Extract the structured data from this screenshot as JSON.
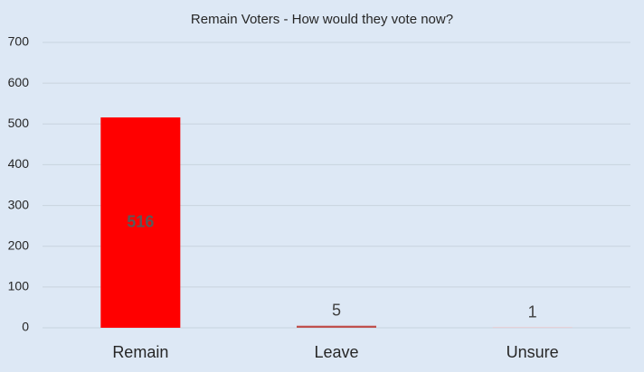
{
  "chart_data": {
    "type": "bar",
    "title": "Remain Voters - How would they vote now?",
    "categories": [
      "Remain",
      "Leave",
      "Unsure"
    ],
    "values": [
      516,
      5,
      1
    ],
    "colors": [
      "#ff0000",
      "#c0504d",
      "#f2b8b8"
    ],
    "ylim": [
      0,
      700
    ],
    "yticks": [
      0,
      100,
      200,
      300,
      400,
      500,
      600,
      700
    ],
    "grid": true
  }
}
